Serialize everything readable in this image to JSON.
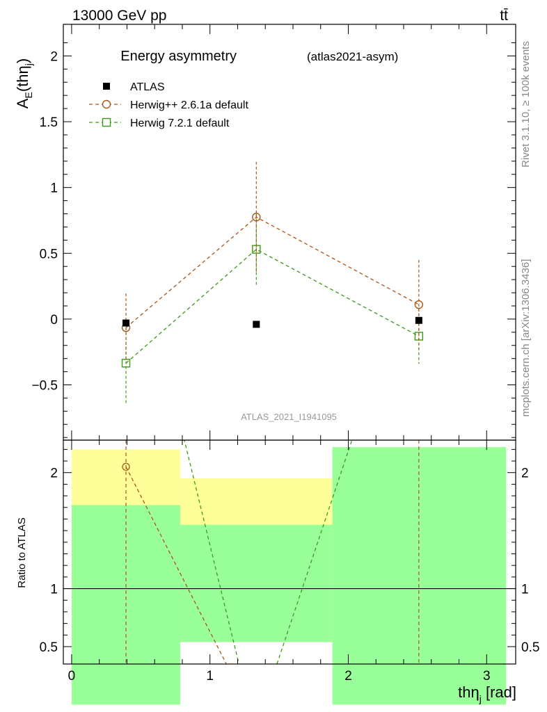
{
  "header": {
    "left": "13000 GeV pp",
    "right": "tt̄"
  },
  "side_labels": {
    "rivet": "Rivet 3.1.10, ≥ 100k events",
    "mcplots": "mcplots.cern.ch [arXiv:1306.3436]"
  },
  "watermark": "ATLAS_2021_I1941095",
  "chart_data": {
    "type": "scatter",
    "title": "Energy asymmetry",
    "subtitle": "(atlas2021-asym)",
    "ylabel": "A_E(thη_j)",
    "xlabel": "thη_j [rad]",
    "ratio_ylabel": "Ratio to ATLAS",
    "xlim": [
      -0.06,
      3.21
    ],
    "ylim": [
      -0.92,
      2.24
    ],
    "ratio_ylim": [
      0.35,
      2.28
    ],
    "xticks": [
      "0",
      "1",
      "2",
      "3"
    ],
    "yticks": [
      "−0.5",
      "0",
      "0.5",
      "1",
      "1.5",
      "2"
    ],
    "ratio_yticks": [
      "0.5",
      "1",
      "2"
    ],
    "legend_position": "top-left",
    "bins": [
      {
        "low": 0.0,
        "high": 0.785
      },
      {
        "low": 0.785,
        "high": 1.885
      },
      {
        "low": 1.885,
        "high": 3.14
      }
    ],
    "series": [
      {
        "name": "ATLAS",
        "color": "#000000",
        "x": [
          0.393,
          1.335,
          2.51
        ],
        "y": [
          -0.03,
          -0.04,
          -0.01
        ]
      },
      {
        "name": "Herwig++ 2.6.1a default",
        "color": "#a8561a",
        "x": [
          0.393,
          1.335,
          2.51
        ],
        "y": [
          -0.065,
          0.775,
          0.11
        ],
        "err": [
          0.26,
          0.42,
          0.34
        ]
      },
      {
        "name": "Herwig 7.2.1 default",
        "color": "#3c9a14",
        "x": [
          0.393,
          1.335,
          2.51
        ],
        "y": [
          -0.335,
          0.53,
          -0.13
        ],
        "err": [
          0.31,
          0.27,
          0.21
        ]
      }
    ],
    "ratio": {
      "green_band": [
        [
          0.0,
          1.72
        ],
        [
          0.0,
          1.55
        ],
        [
          0.0,
          2.22
        ]
      ],
      "yellow_band": [
        [
          0.0,
          2.2
        ],
        [
          0.54,
          1.95
        ],
        [
          0.0,
          2.22
        ]
      ],
      "herwig_pp": {
        "x": [
          0.393,
          1.335,
          2.51
        ],
        "y": [
          2.05,
          0.0,
          0.0
        ]
      }
    }
  }
}
